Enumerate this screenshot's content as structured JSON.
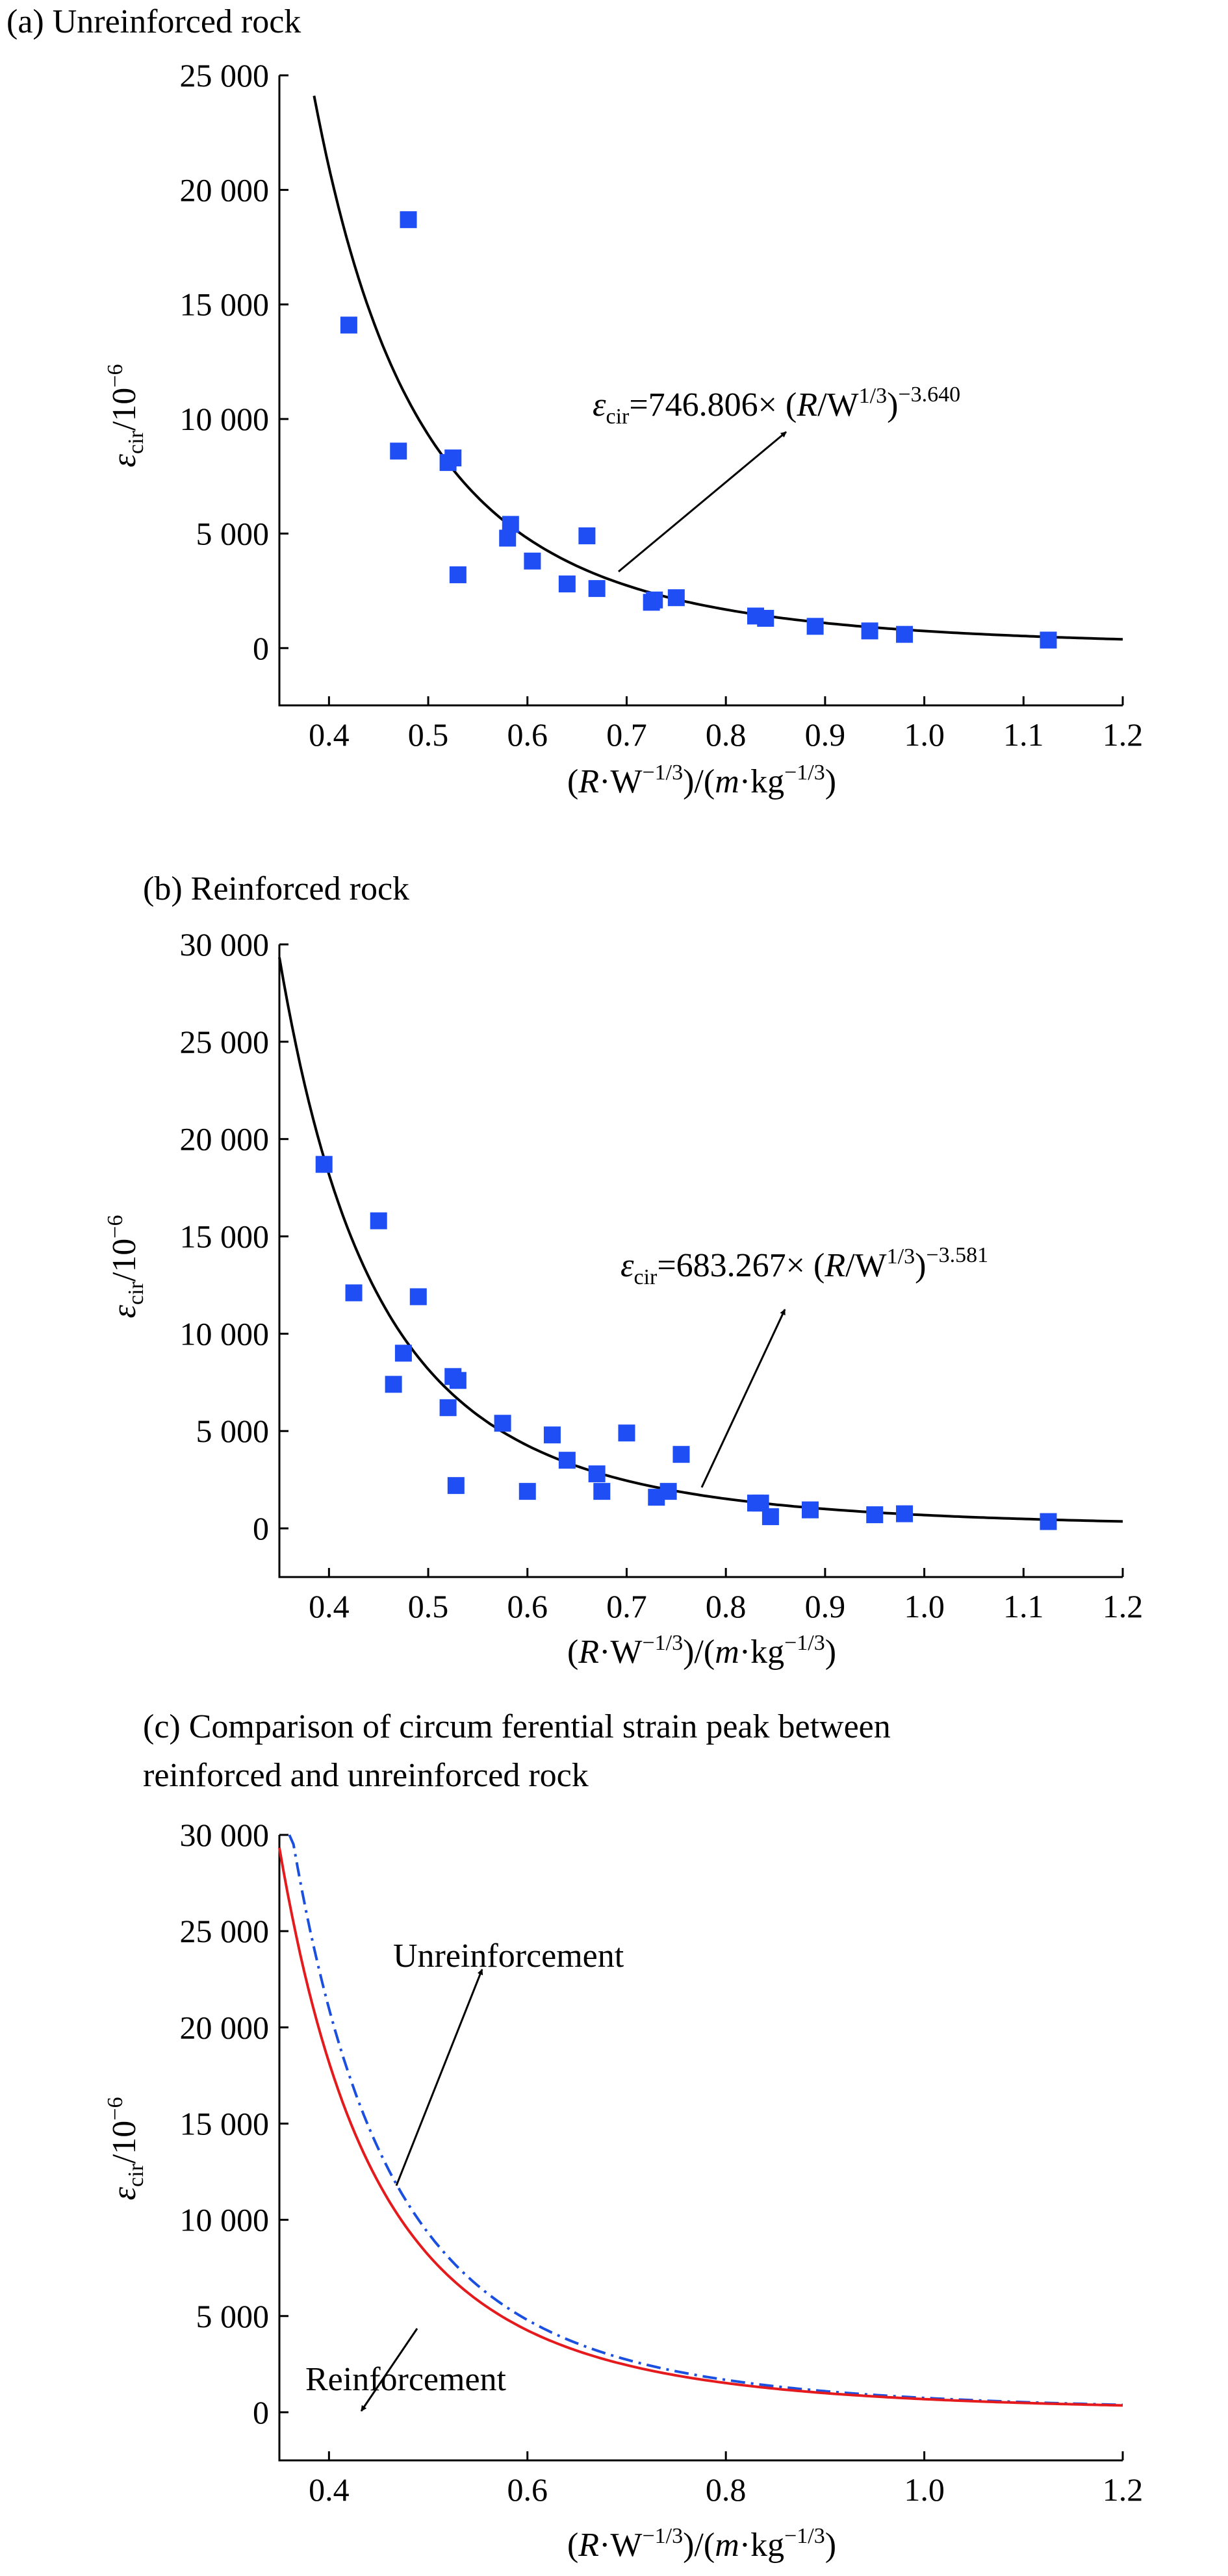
{
  "colors": {
    "points": "#1f4ef5",
    "fit": "#000000",
    "reinforcement_curve": "#e41a1c",
    "unreinforcement_curve": "#1a4fe0",
    "text": "#000000"
  },
  "chart_data": [
    {
      "type": "scatter",
      "title": "(a) Unreinforced rock",
      "xlabel": "(R·W−1/3)/(m·kg−1/3)",
      "ylabel": "εcir/10−6",
      "xlim": [
        0.35,
        1.2
      ],
      "ylim": [
        -2500,
        25000
      ],
      "xticks": [
        0.4,
        0.5,
        0.6,
        0.7,
        0.8,
        0.9,
        1.0,
        1.1,
        1.2
      ],
      "xtick_labels": [
        "0.4",
        "0.5",
        "0.6",
        "0.7",
        "0.8",
        "0.9",
        "1.0",
        "1.1",
        "1.2"
      ],
      "yticks": [
        0,
        5000,
        10000,
        15000,
        20000,
        25000
      ],
      "ytick_labels": [
        "0",
        "5 000",
        "10 000",
        "15 000",
        "20 000",
        "25 000"
      ],
      "grid": false,
      "points": {
        "x": [
          0.42,
          0.48,
          0.47,
          0.52,
          0.525,
          0.53,
          0.58,
          0.583,
          0.605,
          0.64,
          0.66,
          0.67,
          0.725,
          0.728,
          0.75,
          0.83,
          0.84,
          0.89,
          0.945,
          0.98,
          1.125
        ],
        "y": [
          14100,
          18700,
          8600,
          8100,
          8300,
          3200,
          4800,
          5400,
          3800,
          2800,
          4900,
          2600,
          2000,
          2100,
          2200,
          1400,
          1300,
          950,
          750,
          600,
          350
        ]
      },
      "fit": {
        "coefficient": 746.806,
        "exponent": -3.64,
        "x_range": [
          0.385,
          1.2
        ]
      },
      "annotation": {
        "prefix": "ε",
        "prefix_sub": "cir",
        "eq": "=746.806× (",
        "r": "R",
        "w": "/W",
        "w_sup": "1/3",
        "close": ")",
        "exp": "−3.640"
      }
    },
    {
      "type": "scatter",
      "title": "(b) Reinforced rock",
      "xlabel": "(R·W−1/3)/(m·kg−1/3)",
      "ylabel": "εcir/10−6",
      "xlim": [
        0.35,
        1.2
      ],
      "ylim": [
        -2500,
        30000
      ],
      "xticks": [
        0.4,
        0.5,
        0.6,
        0.7,
        0.8,
        0.9,
        1.0,
        1.1,
        1.2
      ],
      "xtick_labels": [
        "0.4",
        "0.5",
        "0.6",
        "0.7",
        "0.8",
        "0.9",
        "1.0",
        "1.1",
        "1.2"
      ],
      "yticks": [
        0,
        5000,
        10000,
        15000,
        20000,
        25000,
        30000
      ],
      "ytick_labels": [
        "0",
        "5 000",
        "10 000",
        "15 000",
        "20 000",
        "25 000",
        "30 000"
      ],
      "grid": false,
      "points": {
        "x": [
          0.395,
          0.425,
          0.45,
          0.465,
          0.475,
          0.49,
          0.52,
          0.525,
          0.53,
          0.528,
          0.575,
          0.6,
          0.625,
          0.64,
          0.67,
          0.675,
          0.7,
          0.73,
          0.742,
          0.755,
          0.83,
          0.835,
          0.845,
          0.885,
          0.95,
          0.98,
          1.125
        ],
        "y": [
          18700,
          12100,
          15800,
          7400,
          9000,
          11900,
          6200,
          7800,
          7600,
          2200,
          5400,
          1900,
          4800,
          3500,
          2800,
          1900,
          4900,
          1600,
          1900,
          3800,
          1300,
          1300,
          600,
          950,
          700,
          750,
          350
        ]
      },
      "fit": {
        "coefficient": 683.267,
        "exponent": -3.581,
        "x_range": [
          0.35,
          1.2
        ]
      },
      "annotation": {
        "prefix": "ε",
        "prefix_sub": "cir",
        "eq": "=683.267× (",
        "r": "R",
        "w": "/W",
        "w_sup": "1/3",
        "close": ")",
        "exp": "−3.581"
      }
    },
    {
      "type": "line",
      "title_line1": "(c) Comparison of circum ferential strain peak between",
      "title_line2": "reinforced and unreinforced rock",
      "xlabel": "(R·W−1/3)/(m·kg−1/3)",
      "ylabel": "εcir/10−6",
      "xlim": [
        0.35,
        1.2
      ],
      "ylim": [
        -2500,
        30000
      ],
      "xticks": [
        0.4,
        0.6,
        0.8,
        1.0,
        1.2
      ],
      "xtick_labels": [
        "0.4",
        "0.6",
        "0.8",
        "1.0",
        "1.2"
      ],
      "yticks": [
        0,
        5000,
        10000,
        15000,
        20000,
        25000,
        30000
      ],
      "ytick_labels": [
        "0",
        "5 000",
        "10 000",
        "15 000",
        "20 000",
        "25 000",
        "30 000"
      ],
      "grid": false,
      "series": [
        {
          "name": "Unreinforcement",
          "coefficient": 746.806,
          "exponent": -3.64,
          "x_range": [
            0.36,
            1.2
          ],
          "style": "dash-dot"
        },
        {
          "name": "Reinforcement",
          "coefficient": 683.267,
          "exponent": -3.581,
          "x_range": [
            0.35,
            1.2
          ],
          "style": "solid"
        }
      ]
    }
  ]
}
